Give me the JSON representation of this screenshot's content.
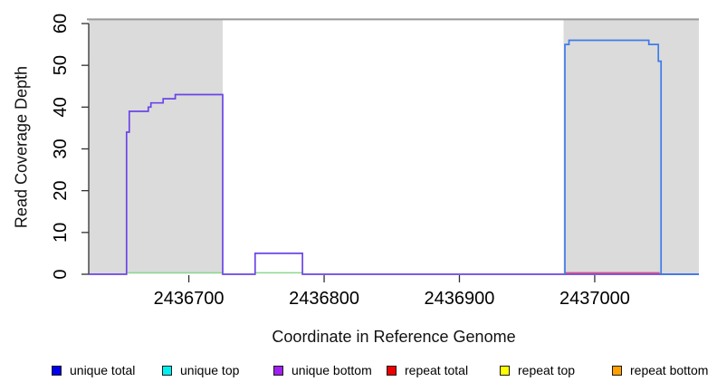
{
  "chart_data": {
    "type": "line",
    "title": "",
    "xlabel": "Coordinate in Reference Genome",
    "ylabel": "Read Coverage Depth",
    "xlim": [
      2436626,
      2437077
    ],
    "ylim": [
      0,
      61.3
    ],
    "x_ticks": [
      2436700,
      2436800,
      2436900,
      2437000
    ],
    "y_ticks": [
      0,
      10,
      20,
      30,
      40,
      50,
      60
    ],
    "grid": false,
    "legend_position": "bottom",
    "region_fill": "#DBDBDB",
    "top_line_color": "#999999",
    "axis_color": "#303030",
    "top_boundary_line_y": 61,
    "highlight_regions": [
      {
        "name": "left-alignment-region",
        "x0": 2436626,
        "x1": 2436725
      },
      {
        "name": "right-alignment-region",
        "x0": 2436977,
        "x1": 2437077
      }
    ],
    "series": [
      {
        "name": "green-baseline-segment-left",
        "color": "#8CD98C",
        "width": 1.5,
        "points": [
          [
            2436655,
            0.35
          ],
          [
            2436725,
            0.35
          ]
        ]
      },
      {
        "name": "green-baseline-segment-middle",
        "color": "#8CD98C",
        "width": 1.5,
        "points": [
          [
            2436749,
            0.35
          ],
          [
            2436784,
            0.35
          ]
        ]
      },
      {
        "name": "red-baseline-segment-right",
        "color": "#E4546E",
        "width": 1.5,
        "points": [
          [
            2436978,
            0.35
          ],
          [
            2437048,
            0.35
          ]
        ]
      },
      {
        "name": "purple-coverage-step-line",
        "color": "#6B45E8",
        "width": 1.7,
        "points": [
          [
            2436626,
            0
          ],
          [
            2436654,
            0
          ],
          [
            2436654,
            34
          ],
          [
            2436656,
            34
          ],
          [
            2436656,
            39
          ],
          [
            2436670,
            39
          ],
          [
            2436670,
            40
          ],
          [
            2436672,
            40
          ],
          [
            2436672,
            41
          ],
          [
            2436681,
            41
          ],
          [
            2436681,
            42
          ],
          [
            2436690,
            42
          ],
          [
            2436690,
            43
          ],
          [
            2436725,
            43
          ],
          [
            2436725,
            0
          ],
          [
            2436749,
            0
          ],
          [
            2436749,
            5
          ],
          [
            2436784,
            5
          ],
          [
            2436784,
            0
          ],
          [
            2437077,
            0
          ]
        ]
      },
      {
        "name": "blue-coverage-step-line",
        "color": "#3D7CE8",
        "width": 1.7,
        "points": [
          [
            2436978,
            0
          ],
          [
            2436978,
            55
          ],
          [
            2436981,
            55
          ],
          [
            2436981,
            56
          ],
          [
            2437040,
            56
          ],
          [
            2437040,
            55
          ],
          [
            2437047,
            55
          ],
          [
            2437047,
            51
          ],
          [
            2437049,
            51
          ],
          [
            2437049,
            0
          ],
          [
            2437077,
            0
          ]
        ]
      }
    ],
    "legend": [
      {
        "label": "unique total",
        "color": "#0000EE"
      },
      {
        "label": "unique top",
        "color": "#00EEEE"
      },
      {
        "label": "unique bottom",
        "color": "#A020F0"
      },
      {
        "label": "repeat total",
        "color": "#EE0000"
      },
      {
        "label": "repeat top",
        "color": "#FFFF00"
      },
      {
        "label": "repeat bottom",
        "color": "#FFA000"
      }
    ]
  }
}
